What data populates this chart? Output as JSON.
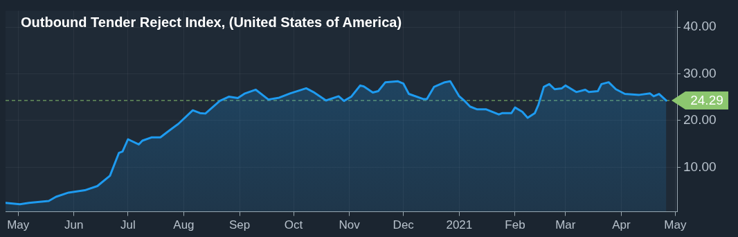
{
  "chart_data": {
    "type": "area",
    "title": "Outbound Tender Reject Index, (United States of America)",
    "x": [
      "2020-04-24",
      "2020-05-02",
      "2020-05-07",
      "2020-05-18",
      "2020-05-22",
      "2020-05-29",
      "2020-06-07",
      "2020-06-14",
      "2020-06-21",
      "2020-06-26",
      "2020-06-28",
      "2020-07-01",
      "2020-07-07",
      "2020-07-09",
      "2020-07-14",
      "2020-07-19",
      "2020-07-23",
      "2020-07-29",
      "2020-08-06",
      "2020-08-10",
      "2020-08-13",
      "2020-08-21",
      "2020-08-26",
      "2020-08-31",
      "2020-09-04",
      "2020-09-10",
      "2020-09-17",
      "2020-09-23",
      "2020-09-29",
      "2020-10-08",
      "2020-10-12",
      "2020-10-19",
      "2020-10-26",
      "2020-10-29",
      "2020-11-02",
      "2020-11-07",
      "2020-11-09",
      "2020-11-14",
      "2020-11-17",
      "2020-11-21",
      "2020-11-28",
      "2020-12-01",
      "2020-12-04",
      "2020-12-12",
      "2020-12-14",
      "2020-12-18",
      "2020-12-24",
      "2020-12-27",
      "2021-01-01",
      "2021-01-04",
      "2021-01-07",
      "2021-01-11",
      "2021-01-16",
      "2021-01-23",
      "2021-01-25",
      "2021-01-30",
      "2021-02-01",
      "2021-02-05",
      "2021-02-08",
      "2021-02-12",
      "2021-02-14",
      "2021-02-17",
      "2021-02-20",
      "2021-02-23",
      "2021-02-27",
      "2021-03-01",
      "2021-03-07",
      "2021-03-12",
      "2021-03-14",
      "2021-03-19",
      "2021-03-21",
      "2021-03-25",
      "2021-03-29",
      "2021-04-03",
      "2021-04-11",
      "2021-04-17",
      "2021-04-19",
      "2021-04-22",
      "2021-04-26"
    ],
    "series": [
      {
        "color": "#1e9bf0",
        "values": [
          2.4,
          2.1,
          2.4,
          2.8,
          3.7,
          4.6,
          5.1,
          6.0,
          8.2,
          13.1,
          13.4,
          16.0,
          14.9,
          15.7,
          16.4,
          16.4,
          17.6,
          19.3,
          22.2,
          21.6,
          21.5,
          24.2,
          25.1,
          24.8,
          25.8,
          26.6,
          24.5,
          24.9,
          25.8,
          26.9,
          26.1,
          24.3,
          25.2,
          24.2,
          25.1,
          27.5,
          27.3,
          26.0,
          26.3,
          28.2,
          28.4,
          27.9,
          25.7,
          24.6,
          24.6,
          27.2,
          28.2,
          28.4,
          25.2,
          24.2,
          23.0,
          22.4,
          22.4,
          21.3,
          21.6,
          21.6,
          22.8,
          21.9,
          20.6,
          21.6,
          23.4,
          27.2,
          27.8,
          26.7,
          26.9,
          27.5,
          26.1,
          26.6,
          26.1,
          26.3,
          27.8,
          28.2,
          26.7,
          25.7,
          25.5,
          25.8,
          25.2,
          25.7,
          24.29
        ]
      }
    ],
    "xlim": [
      "2020-04-24",
      "2021-05-02"
    ],
    "xticks": [
      {
        "value": "2020-05-01",
        "label": "May"
      },
      {
        "value": "2020-06-01",
        "label": "Jun"
      },
      {
        "value": "2020-07-01",
        "label": "Jul"
      },
      {
        "value": "2020-08-01",
        "label": "Aug"
      },
      {
        "value": "2020-09-01",
        "label": "Sep"
      },
      {
        "value": "2020-10-01",
        "label": "Oct"
      },
      {
        "value": "2020-11-01",
        "label": "Nov"
      },
      {
        "value": "2020-12-01",
        "label": "Dec"
      },
      {
        "value": "2021-01-01",
        "label": "2021"
      },
      {
        "value": "2021-02-01",
        "label": "Feb"
      },
      {
        "value": "2021-03-01",
        "label": "Mar"
      },
      {
        "value": "2021-04-01",
        "label": "Apr"
      },
      {
        "value": "2021-05-01",
        "label": "May"
      }
    ],
    "ylim": [
      0.5,
      43.5
    ],
    "yticks": [
      {
        "value": 10,
        "label": "10.00"
      },
      {
        "value": 20,
        "label": "20.00"
      },
      {
        "value": 30,
        "label": "30.00"
      },
      {
        "value": 40,
        "label": "40.00"
      }
    ],
    "ref_lines": [
      {
        "axis": "y",
        "value": 24.29,
        "label": "24.29",
        "color": "#8cc66f",
        "line_style": "dashed"
      }
    ],
    "grid": true,
    "legend": false,
    "marker": "none",
    "line_style": "solid"
  }
}
